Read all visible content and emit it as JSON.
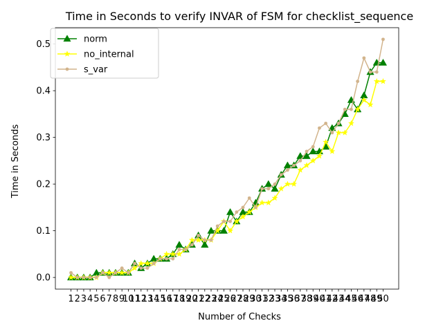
{
  "chart_data": {
    "type": "line",
    "title": "Time in Seconds to verify INVAR of FSM for checklist_sequence",
    "xlabel": "Number of Checks",
    "ylabel": "Time in Seconds",
    "x": [
      1,
      2,
      3,
      4,
      5,
      6,
      7,
      8,
      9,
      10,
      11,
      12,
      13,
      14,
      15,
      16,
      17,
      18,
      19,
      20,
      21,
      22,
      23,
      24,
      25,
      26,
      27,
      28,
      29,
      30,
      31,
      32,
      33,
      34,
      35,
      36,
      37,
      38,
      39,
      40,
      41,
      42,
      43,
      44,
      45,
      46,
      47,
      48,
      49,
      50
    ],
    "ylim": [
      -0.025,
      0.535
    ],
    "yticks": [
      0.0,
      0.1,
      0.2,
      0.3,
      0.4,
      0.5
    ],
    "ytick_labels": [
      "0.0",
      "0.1",
      "0.2",
      "0.3",
      "0.4",
      "0.5"
    ],
    "grid": false,
    "legend_position": "top-left",
    "series": [
      {
        "name": "norm",
        "color": "#008000",
        "marker": "triangle",
        "values": [
          0.0,
          0.0,
          0.0,
          0.0,
          0.01,
          0.01,
          0.01,
          0.01,
          0.01,
          0.01,
          0.03,
          0.02,
          0.03,
          0.04,
          0.04,
          0.04,
          0.05,
          0.07,
          0.06,
          0.07,
          0.09,
          0.07,
          0.1,
          0.1,
          0.1,
          0.14,
          0.12,
          0.14,
          0.14,
          0.16,
          0.19,
          0.2,
          0.19,
          0.22,
          0.24,
          0.24,
          0.26,
          0.26,
          0.27,
          0.27,
          0.28,
          0.32,
          0.33,
          0.35,
          0.38,
          0.36,
          0.39,
          0.44,
          0.46,
          0.46
        ]
      },
      {
        "name": "no_internal",
        "color": "#ffff00",
        "marker": "star",
        "values": [
          0.0,
          0.0,
          0.0,
          0.0,
          0.0,
          0.01,
          0.01,
          0.01,
          0.01,
          0.01,
          0.02,
          0.03,
          0.03,
          0.03,
          0.04,
          0.05,
          0.05,
          0.05,
          0.06,
          0.08,
          0.08,
          0.08,
          0.08,
          0.1,
          0.12,
          0.1,
          0.12,
          0.13,
          0.14,
          0.15,
          0.16,
          0.16,
          0.17,
          0.19,
          0.2,
          0.2,
          0.23,
          0.24,
          0.25,
          0.26,
          0.29,
          0.27,
          0.31,
          0.31,
          0.33,
          0.36,
          0.38,
          0.37,
          0.42,
          0.42
        ]
      },
      {
        "name": "s_var",
        "color": "#d2b48c",
        "marker": "point",
        "values": [
          0.01,
          0.0,
          0.0,
          0.0,
          0.0,
          0.01,
          0.0,
          0.01,
          0.02,
          0.01,
          0.03,
          0.02,
          0.02,
          0.03,
          0.04,
          0.04,
          0.04,
          0.06,
          0.06,
          0.07,
          0.09,
          0.08,
          0.08,
          0.11,
          0.12,
          0.12,
          0.14,
          0.15,
          0.17,
          0.15,
          0.19,
          0.19,
          0.2,
          0.22,
          0.23,
          0.24,
          0.25,
          0.27,
          0.28,
          0.32,
          0.33,
          0.31,
          0.33,
          0.36,
          0.36,
          0.42,
          0.47,
          0.44,
          0.44,
          0.51
        ]
      }
    ]
  }
}
